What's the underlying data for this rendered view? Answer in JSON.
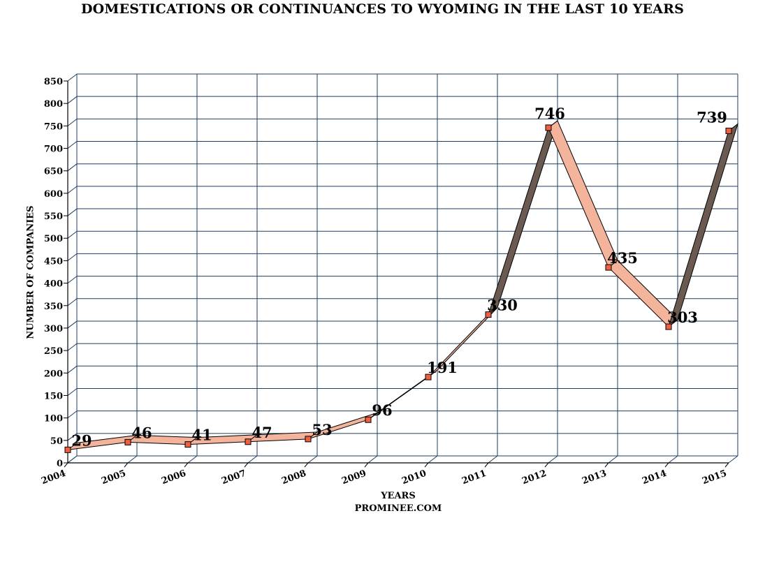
{
  "chart_data": {
    "type": "line",
    "title": "DOMESTICATIONS OR CONTINUANCES TO WYOMING IN THE LAST 10 YEARS",
    "xlabel": "YEARS",
    "ylabel": "NUMBER OF COMPANIES",
    "source": "PROMINEE.COM",
    "categories": [
      "2004",
      "2005",
      "2006",
      "2007",
      "2008",
      "2009",
      "2010",
      "2011",
      "2012",
      "2013",
      "2014",
      "2015"
    ],
    "series": [
      {
        "values": [
          29,
          46,
          41,
          47,
          53,
          96,
          191,
          330,
          746,
          435,
          303,
          739
        ],
        "labels": [
          "29",
          "46",
          "41",
          "47",
          "53",
          "96",
          "191",
          "330",
          "746",
          "435",
          "303",
          "739"
        ]
      }
    ],
    "ylim": [
      0,
      850
    ],
    "yticks": [
      0,
      50,
      100,
      150,
      200,
      250,
      300,
      350,
      400,
      450,
      500,
      550,
      600,
      650,
      700,
      750,
      800,
      850
    ],
    "grid": true,
    "style": "3d-ribbon",
    "colors": {
      "ribbon_face": "#f4b49c",
      "ribbon_dark": "#6b5a52",
      "marker": "#f06040",
      "grid": "#1f3f5f"
    }
  }
}
